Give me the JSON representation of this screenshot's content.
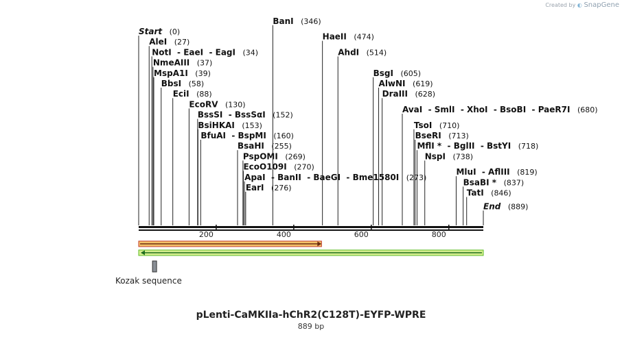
{
  "watermark": {
    "prefix": "Created by",
    "brand": "SnapGene"
  },
  "map": {
    "name": "pLenti-CaMKIIa-hChR2(C128T)-EYFP-WPRE",
    "length_label": "889 bp",
    "length": 889,
    "ticks": [
      {
        "pos": 200,
        "label": "200"
      },
      {
        "pos": 400,
        "label": "400"
      },
      {
        "pos": 600,
        "label": "600"
      },
      {
        "pos": 800,
        "label": "800"
      }
    ],
    "sites": [
      {
        "names": [
          "Start"
        ],
        "pos": "(0)",
        "bp": 0,
        "row": 0,
        "style": "bold-italic"
      },
      {
        "names": [
          "AleI"
        ],
        "pos": "(27)",
        "bp": 27,
        "row": 1
      },
      {
        "names": [
          "NotI",
          "EaeI",
          "EagI"
        ],
        "pos": "(34)",
        "bp": 34,
        "row": 2
      },
      {
        "names": [
          "NmeAIII"
        ],
        "pos": "(37)",
        "bp": 37,
        "row": 3
      },
      {
        "names": [
          "MspA1I"
        ],
        "pos": "(39)",
        "bp": 39,
        "row": 4
      },
      {
        "names": [
          "BbsI"
        ],
        "pos": "(58)",
        "bp": 58,
        "row": 5
      },
      {
        "names": [
          "EciI"
        ],
        "pos": "(88)",
        "bp": 88,
        "row": 6
      },
      {
        "names": [
          "EcoRV"
        ],
        "pos": "(130)",
        "bp": 130,
        "row": 7
      },
      {
        "names": [
          "BssSI",
          "BssSαI"
        ],
        "pos": "(152)",
        "bp": 152,
        "row": 8
      },
      {
        "names": [
          "BsiHKAI"
        ],
        "pos": "(153)",
        "bp": 153,
        "row": 9
      },
      {
        "names": [
          "BfuAI",
          "BspMI"
        ],
        "pos": "(160)",
        "bp": 160,
        "row": 10
      },
      {
        "names": [
          "BsaHI"
        ],
        "pos": "(255)",
        "bp": 255,
        "row": 11
      },
      {
        "names": [
          "PspOMI"
        ],
        "pos": "(269)",
        "bp": 269,
        "row": 12
      },
      {
        "names": [
          "EcoO109I"
        ],
        "pos": "(270)",
        "bp": 270,
        "row": 13
      },
      {
        "names": [
          "ApaI",
          "BanII",
          "BaeGI",
          "Bme1580I"
        ],
        "pos": "(273)",
        "bp": 273,
        "row": 14
      },
      {
        "names": [
          "EarI"
        ],
        "pos": "(276)",
        "bp": 276,
        "row": 15
      },
      {
        "names": [
          "BanI"
        ],
        "pos": "(346)",
        "bp": 346,
        "row": -1
      },
      {
        "names": [
          "HaeII"
        ],
        "pos": "(474)",
        "bp": 474,
        "row": 0.5
      },
      {
        "names": [
          "AhdI"
        ],
        "pos": "(514)",
        "bp": 514,
        "row": 2
      },
      {
        "names": [
          "BsgI"
        ],
        "pos": "(605)",
        "bp": 605,
        "row": 4
      },
      {
        "names": [
          "AlwNI"
        ],
        "pos": "(619)",
        "bp": 619,
        "row": 5
      },
      {
        "names": [
          "DraIII"
        ],
        "pos": "(628)",
        "bp": 628,
        "row": 6
      },
      {
        "names": [
          "AvaI",
          "SmlI",
          "XhoI",
          "BsoBI",
          "PaeR7I"
        ],
        "pos": "(680)",
        "bp": 680,
        "row": 7.5
      },
      {
        "names": [
          "TsoI"
        ],
        "pos": "(710)",
        "bp": 710,
        "row": 9
      },
      {
        "names": [
          "BseRI"
        ],
        "pos": "(713)",
        "bp": 713,
        "row": 10
      },
      {
        "names": [
          "MflI *",
          "BglII",
          "BstYI"
        ],
        "pos": "(718)",
        "bp": 718,
        "row": 11
      },
      {
        "names": [
          "NspI"
        ],
        "pos": "(738)",
        "bp": 738,
        "row": 12
      },
      {
        "names": [
          "MluI",
          "AflIII"
        ],
        "pos": "(819)",
        "bp": 819,
        "row": 13.5
      },
      {
        "names": [
          "BsaBI *"
        ],
        "pos": "(837)",
        "bp": 837,
        "row": 14.5
      },
      {
        "names": [
          "TatI"
        ],
        "pos": "(846)",
        "bp": 846,
        "row": 15.5
      },
      {
        "names": [
          "End"
        ],
        "pos": "(889)",
        "bp": 889,
        "row": 16.8,
        "style": "bold-italic"
      }
    ],
    "features": [
      {
        "name": "forward-feature",
        "start": 0,
        "end": 500,
        "direction": "forward",
        "fill": "#f5c36b",
        "edge": "#c0392b",
        "arrow": "#6b2a10"
      },
      {
        "name": "reverse-feature",
        "start": 0,
        "end": 889,
        "direction": "reverse",
        "fill": "#d7ef8f",
        "edge": "#5dbb2a",
        "arrow": "#1f6d1f"
      },
      {
        "name": "kozak-sequence",
        "label": "Kozak sequence",
        "start": 25,
        "end": 35,
        "fill": "#8a8f96",
        "edge": "#333333"
      }
    ]
  }
}
